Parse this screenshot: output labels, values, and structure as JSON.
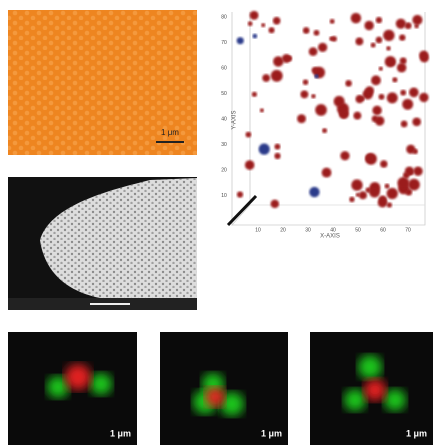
{
  "orange_panel": {
    "scale_label": "1 μm"
  },
  "plot3d": {
    "yticks": [
      80,
      70,
      60,
      50,
      40,
      30,
      20,
      10
    ],
    "xticks": [
      10,
      20,
      30,
      40,
      50,
      60,
      70
    ],
    "x_axis_label": "X-AXIS",
    "y_axis_label": "Y-AXIS"
  },
  "fluorescence": [
    {
      "scale_label": "1 μm"
    },
    {
      "scale_label": "1 μm"
    },
    {
      "scale_label": "1 μm"
    }
  ]
}
